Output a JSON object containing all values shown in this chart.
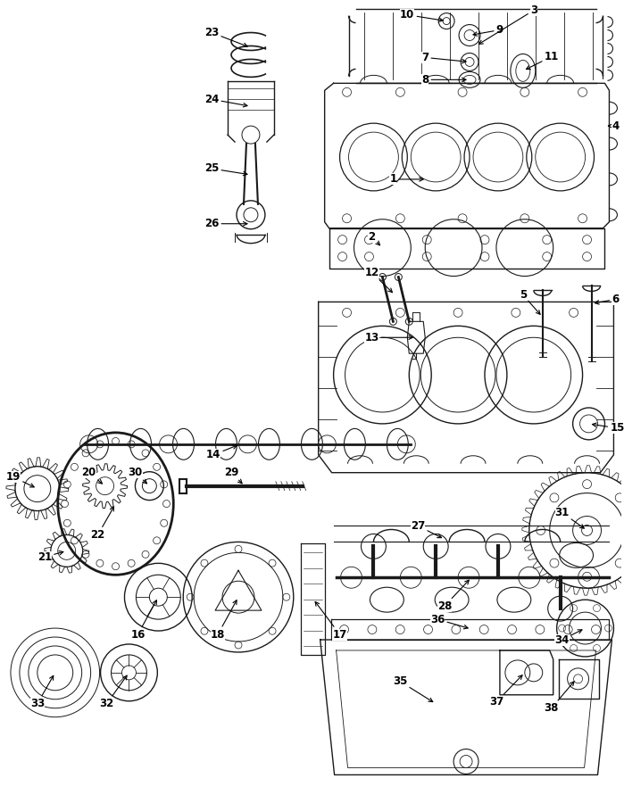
{
  "bg_color": "#ffffff",
  "line_color": "#1a1a1a",
  "lw": 1.0,
  "fig_width": 6.99,
  "fig_height": 9.0
}
